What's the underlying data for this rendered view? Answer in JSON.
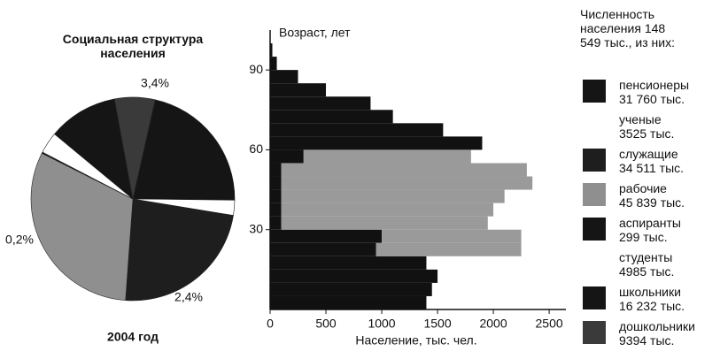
{
  "chart_data": [
    {
      "type": "pie",
      "title": "Социальная структура населения",
      "subtitle": "2004 год",
      "legend_title": "Численность населения 148 549 тыс., из них:",
      "categories": [
        "пенсионеры",
        "ученые",
        "служащие",
        "рабочие",
        "аспиранты",
        "студенты",
        "школьники",
        "дошкольники"
      ],
      "values": [
        31760,
        3525,
        34511,
        45839,
        299,
        4985,
        16232,
        9394
      ],
      "value_labels": [
        "31 760 тыс.",
        "3525 тыс.",
        "34 511 тыс.",
        "45 839 тыс.",
        "299 тыс.",
        "4985 тыс.",
        "16 232 тыс.",
        "9394 тыс."
      ],
      "colors": [
        "#151515",
        "#ffffff",
        "#1e1e1e",
        "#8f8f8f",
        "#151515",
        "#ffffff",
        "#151515",
        "#3a3a3a"
      ],
      "annotations": [
        "3,4%",
        "0,2%",
        "2,4%"
      ]
    },
    {
      "type": "histogram",
      "orientation": "horizontal",
      "ylabel": "Возраст, лет",
      "xlabel": "Население, тыс. чел.",
      "bins": [
        0,
        5,
        10,
        15,
        20,
        25,
        30,
        35,
        40,
        45,
        50,
        55,
        60,
        65,
        70,
        75,
        80,
        85,
        90,
        95,
        100
      ],
      "series": [
        {
          "color": "#111111",
          "values": [
            1400,
            1450,
            1500,
            1400,
            950,
            1000,
            100,
            100,
            100,
            100,
            100,
            300,
            1900,
            1550,
            1100,
            900,
            500,
            250,
            60,
            20
          ]
        },
        {
          "color": "#9a9a9a",
          "values": [
            0,
            0,
            0,
            0,
            1300,
            1250,
            1850,
            1900,
            2000,
            2250,
            2200,
            1500,
            0,
            0,
            0,
            0,
            0,
            0,
            0,
            0
          ]
        }
      ],
      "xlim": [
        0,
        2650
      ],
      "ylim": [
        0,
        105
      ],
      "xticks": [
        0,
        500,
        1000,
        1500,
        2000,
        2500
      ],
      "yticks": [
        30,
        60,
        90
      ]
    }
  ]
}
